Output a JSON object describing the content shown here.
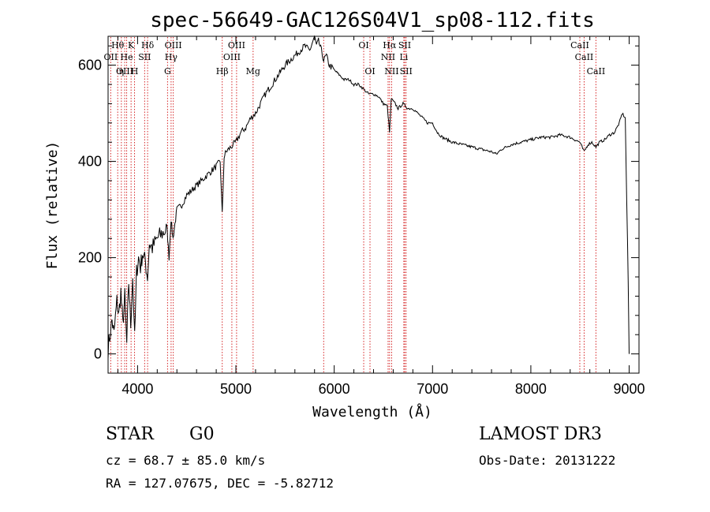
{
  "chart_data": {
    "type": "line",
    "title": "spec-56649-GAC126S04V1_sp08-112.fits",
    "xlabel": "Wavelength (Å)",
    "ylabel": "Flux (relative)",
    "xlim": [
      3700,
      9100
    ],
    "ylim": [
      -40,
      660
    ],
    "xticks": [
      4000,
      5000,
      6000,
      7000,
      8000,
      9000
    ],
    "yticks": [
      0,
      200,
      400,
      600
    ],
    "series": [
      {
        "name": "spectrum",
        "x": [
          3700,
          3740,
          3760,
          3790,
          3810,
          3830,
          3850,
          3870,
          3890,
          3910,
          3930,
          3950,
          3960,
          3970,
          3990,
          4010,
          4030,
          4050,
          4080,
          4101,
          4120,
          4150,
          4200,
          4250,
          4300,
          4320,
          4340,
          4360,
          4380,
          4400,
          4450,
          4500,
          4550,
          4600,
          4650,
          4700,
          4750,
          4800,
          4840,
          4861,
          4880,
          4900,
          4950,
          5000,
          5050,
          5100,
          5150,
          5200,
          5250,
          5300,
          5400,
          5500,
          5600,
          5700,
          5750,
          5800,
          5820,
          5840,
          5870,
          5893,
          5920,
          5950,
          6000,
          6050,
          6100,
          6150,
          6200,
          6250,
          6300,
          6350,
          6400,
          6450,
          6500,
          6540,
          6563,
          6580,
          6620,
          6650,
          6700,
          6750,
          6800,
          6850,
          6900,
          6950,
          7000,
          7050,
          7100,
          7200,
          7300,
          7400,
          7500,
          7600,
          7650,
          7700,
          7800,
          7900,
          8000,
          8100,
          8200,
          8300,
          8400,
          8498,
          8520,
          8542,
          8580,
          8620,
          8662,
          8700,
          8750,
          8800,
          8850,
          8900,
          8930,
          8960,
          8990,
          9000
        ],
        "y": [
          10,
          70,
          40,
          110,
          80,
          130,
          60,
          120,
          20,
          150,
          60,
          160,
          100,
          30,
          170,
          200,
          180,
          210,
          190,
          160,
          230,
          220,
          240,
          250,
          260,
          200,
          280,
          240,
          270,
          300,
          310,
          330,
          340,
          350,
          360,
          370,
          380,
          390,
          400,
          290,
          410,
          420,
          430,
          440,
          460,
          470,
          490,
          500,
          520,
          540,
          570,
          600,
          620,
          640,
          630,
          660,
          640,
          650,
          630,
          610,
          620,
          600,
          590,
          580,
          570,
          570,
          560,
          560,
          550,
          540,
          540,
          535,
          520,
          515,
          460,
          530,
          520,
          510,
          520,
          510,
          510,
          500,
          490,
          480,
          480,
          460,
          450,
          440,
          435,
          430,
          425,
          420,
          415,
          425,
          435,
          440,
          445,
          450,
          450,
          455,
          450,
          440,
          430,
          420,
          435,
          440,
          430,
          440,
          445,
          455,
          460,
          480,
          500,
          490,
          150,
          0
        ]
      }
    ],
    "spectral_lines": [
      {
        "label": "Hθ",
        "wavelength": 3798,
        "row": 1
      },
      {
        "label": "OII",
        "wavelength": 3727,
        "row": 2
      },
      {
        "label": "OIII",
        "wavelength": 3869,
        "row": 3
      },
      {
        "label": "He",
        "wavelength": 3889,
        "row": 2
      },
      {
        "label": "K",
        "wavelength": 3934,
        "row": 1
      },
      {
        "label": "η",
        "wavelength": 3835,
        "row": 3
      },
      {
        "label": "H",
        "wavelength": 3969,
        "row": 3
      },
      {
        "label": "SII",
        "wavelength": 4072,
        "row": 2
      },
      {
        "label": "Hδ",
        "wavelength": 4102,
        "row": 1
      },
      {
        "label": "OIII",
        "wavelength": 4363,
        "row": 1
      },
      {
        "label": "Hγ",
        "wavelength": 4341,
        "row": 2
      },
      {
        "label": "G",
        "wavelength": 4305,
        "row": 3
      },
      {
        "label": "Hβ",
        "wavelength": 4861,
        "row": 3
      },
      {
        "label": "OIII",
        "wavelength": 4959,
        "row": 2
      },
      {
        "label": "OIII",
        "wavelength": 5007,
        "row": 1
      },
      {
        "label": "Mg",
        "wavelength": 5175,
        "row": 3
      },
      {
        "label": "",
        "wavelength": 5893,
        "row": 0
      },
      {
        "label": "OI",
        "wavelength": 6300,
        "row": 1
      },
      {
        "label": "OI",
        "wavelength": 6364,
        "row": 3
      },
      {
        "label": "Hα",
        "wavelength": 6563,
        "row": 1
      },
      {
        "label": "NII",
        "wavelength": 6548,
        "row": 2
      },
      {
        "label": "NII",
        "wavelength": 6584,
        "row": 3
      },
      {
        "label": "SII",
        "wavelength": 6717,
        "row": 1
      },
      {
        "label": "Li",
        "wavelength": 6708,
        "row": 2
      },
      {
        "label": "SII",
        "wavelength": 6731,
        "row": 3
      },
      {
        "label": "CaII",
        "wavelength": 8498,
        "row": 1
      },
      {
        "label": "CaII",
        "wavelength": 8542,
        "row": 2
      },
      {
        "label": "CaII",
        "wavelength": 8662,
        "row": 3
      }
    ]
  },
  "info": {
    "class_label": "STAR",
    "subclass": "G0",
    "survey": "LAMOST DR3",
    "cz_line": "cz = 68.7 ± 85.0 km/s",
    "obs_date_line": "Obs-Date: 20131222",
    "radec_line": "RA = 127.07675, DEC =  -5.82712"
  },
  "colors": {
    "axis": "#000000",
    "spectrum": "#000000",
    "line_marker": "#d62728"
  }
}
